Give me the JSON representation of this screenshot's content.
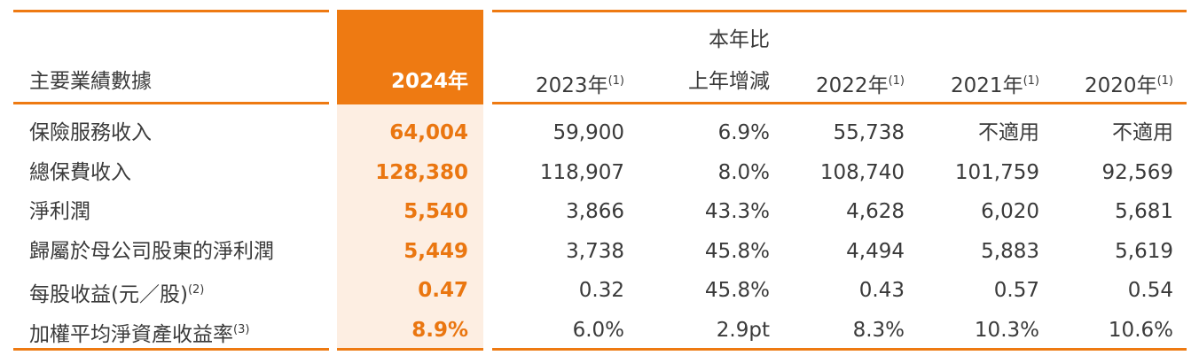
{
  "header": {
    "columns": [
      {
        "text": "主要業績數據"
      },
      {
        "text": "2024年"
      },
      {
        "text": "2023年",
        "note": "(1)"
      },
      {
        "line1": "本年比",
        "line2": "上年增減"
      },
      {
        "text": "2022年",
        "note": "(1)"
      },
      {
        "text": "2021年",
        "note": "(1)"
      },
      {
        "text": "2020年",
        "note": "(1)"
      }
    ]
  },
  "rows": [
    {
      "label": "保險服務收入",
      "cells": [
        "64,004",
        "59,900",
        "6.9%",
        "55,738",
        "不適用",
        "不適用"
      ]
    },
    {
      "label": "總保費收入",
      "cells": [
        "128,380",
        "118,907",
        "8.0%",
        "108,740",
        "101,759",
        "92,569"
      ]
    },
    {
      "label": "淨利潤",
      "cells": [
        "5,540",
        "3,866",
        "43.3%",
        "4,628",
        "6,020",
        "5,681"
      ]
    },
    {
      "label": "歸屬於母公司股東的淨利潤",
      "cells": [
        "5,449",
        "3,738",
        "45.8%",
        "4,494",
        "5,883",
        "5,619"
      ]
    },
    {
      "label": "每股收益(元／股)",
      "note": "(2)",
      "cells": [
        "0.47",
        "0.32",
        "45.8%",
        "0.43",
        "0.57",
        "0.54"
      ]
    },
    {
      "label": "加權平均淨資產收益率",
      "note": "(3)",
      "cells": [
        "8.9%",
        "6.0%",
        "2.9pt",
        "8.3%",
        "10.3%",
        "10.6%"
      ]
    }
  ]
}
